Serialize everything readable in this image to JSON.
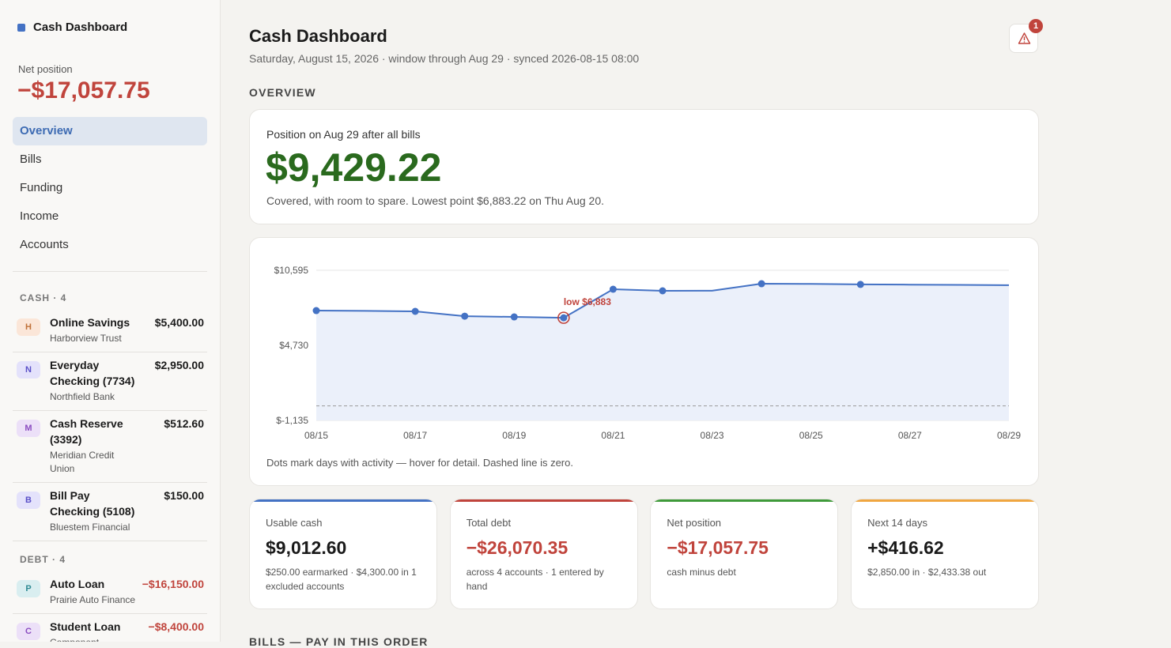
{
  "sidebar": {
    "title": "Cash Dashboard",
    "net_label": "Net position",
    "net_value": "−$17,057.75",
    "nav": [
      "Overview",
      "Bills",
      "Funding",
      "Income",
      "Accounts"
    ],
    "groups": [
      {
        "title": "CASH · 4",
        "accounts": [
          {
            "initial": "H",
            "name": "Online Savings",
            "bank": "Harborview Trust",
            "amount": "$5,400.00",
            "badge": "#fbe6d8",
            "badge_text": "#c0713a"
          },
          {
            "initial": "N",
            "name": "Everyday Checking (7734)",
            "bank": "Northfield Bank",
            "amount": "$2,950.00",
            "badge": "#e4e2fb",
            "badge_text": "#5a50c8"
          },
          {
            "initial": "M",
            "name": "Cash Reserve (3392)",
            "bank": "Meridian Credit Union",
            "amount": "$512.60",
            "badge": "#ece0f8",
            "badge_text": "#8a4cc0"
          },
          {
            "initial": "B",
            "name": "Bill Pay Checking (5108)",
            "bank": "Bluestem Financial",
            "amount": "$150.00",
            "badge": "#e4e2fb",
            "badge_text": "#5a50c8"
          }
        ]
      },
      {
        "title": "DEBT · 4",
        "accounts": [
          {
            "initial": "P",
            "name": "Auto Loan",
            "bank": "Prairie Auto Finance",
            "amount": "−$16,150.00",
            "badge": "#d9eef0",
            "badge_text": "#2f8a93"
          },
          {
            "initial": "C",
            "name": "Student Loan",
            "bank": "Component",
            "amount": "−$8,400.00",
            "badge": "#ece0f8",
            "badge_text": "#8a4cc0"
          }
        ]
      }
    ]
  },
  "header": {
    "title": "Cash Dashboard",
    "subtitle": "Saturday, August 15, 2026 · window through Aug 29 · synced 2026-08-15 08:00",
    "alert_count": "1"
  },
  "overview": {
    "section": "OVERVIEW",
    "label": "Position on Aug 29 after all bills",
    "value": "$9,429.22",
    "note": "Covered, with room to spare. Lowest point $6,883.22 on Thu Aug 20."
  },
  "chart": {
    "type": "line",
    "categories": [
      "08/15",
      null,
      "08/17",
      null,
      "08/19",
      null,
      "08/21",
      null,
      "08/23",
      null,
      "08/25",
      null,
      "08/27",
      null,
      "08/29"
    ],
    "values": [
      7446,
      7420,
      7385,
      7010,
      6950,
      6883.22,
      9113,
      8990,
      9000,
      9545,
      9530,
      9490,
      9470,
      9450,
      9429.22
    ],
    "markers": [
      true,
      false,
      true,
      true,
      true,
      true,
      true,
      true,
      false,
      true,
      false,
      true,
      false,
      false,
      false
    ],
    "color": "#4472c4",
    "fill": "#ebf0fa",
    "ylim": [
      -1135,
      10595
    ],
    "yticks": [
      {
        "value": -1135,
        "label": "$-1,135"
      },
      {
        "value": 4730,
        "label": "$4,730"
      },
      {
        "value": 10595,
        "label": "$10,595"
      }
    ],
    "grid": true,
    "zero_line": 0,
    "annotation": {
      "index": 5,
      "text": "low $6,883",
      "color": "#c0443c"
    },
    "footnote": "Dots mark days with activity — hover for detail. Dashed line is zero."
  },
  "cards": [
    {
      "label": "Usable cash",
      "value": "$9,012.60",
      "note": "$250.00 earmarked · $4,300.00 in 1 excluded accounts",
      "accent": "#4472c4",
      "value_color": "#1a1a1a"
    },
    {
      "label": "Total debt",
      "value": "−$26,070.35",
      "note": "across 4 accounts · 1 entered by hand",
      "accent": "#c0443c",
      "value_color": "#c0443c"
    },
    {
      "label": "Net position",
      "value": "−$17,057.75",
      "note": "cash minus debt",
      "accent": "#3f9a3a",
      "value_color": "#c0443c"
    },
    {
      "label": "Next 14 days",
      "value": "+$416.62",
      "note": "$2,850.00 in · $2,433.38 out",
      "accent": "#f0a640",
      "value_color": "#1a1a1a"
    }
  ],
  "next_section": "BILLS — PAY IN THIS ORDER"
}
